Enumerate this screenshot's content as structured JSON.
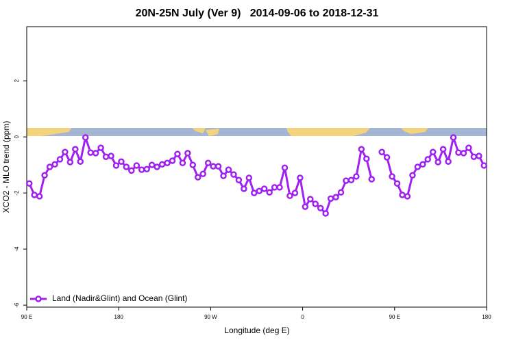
{
  "chart_data": {
    "type": "line",
    "title": "20N-25N July (Ver 9)   2014-09-06 to 2018-12-31",
    "x_label": "Longitude (deg E)",
    "y_label": "XCO2 - MLO trend (ppm)",
    "x": [
      92.5,
      97.5,
      102.5,
      107.5,
      112.5,
      117.5,
      122.5,
      127.5,
      132.5,
      137.5,
      142.5,
      147.5,
      152.5,
      157.5,
      162.5,
      167.5,
      172.5,
      177.5,
      182.5,
      187.5,
      192.5,
      197.5,
      202.5,
      207.5,
      212.5,
      217.5,
      222.5,
      227.5,
      232.5,
      237.5,
      242.5,
      247.5,
      252.5,
      257.5,
      262.5,
      267.5,
      272.5,
      277.5,
      282.5,
      287.5,
      292.5,
      297.5,
      302.5,
      307.5,
      312.5,
      317.5,
      322.5,
      327.5,
      332.5,
      337.5,
      342.5,
      347.5,
      352.5,
      357.5,
      362.5,
      367.5,
      372.5,
      377.5,
      382.5,
      387.5,
      392.5,
      397.5,
      402.5,
      407.5,
      412.5,
      417.5,
      422.5,
      427.5,
      432.5,
      437.5,
      442.5,
      447.5,
      452.5,
      457.5,
      462.5,
      467.5,
      472.5,
      477.5,
      482.5,
      487.5,
      492.5,
      497.5,
      502.5,
      507.5,
      512.5,
      517.5,
      522.5,
      527.5,
      532.5,
      537.5
    ],
    "series": [
      {
        "name": "Land (Nadir&Glint) and Ocean (Glint)",
        "color": "#a020f0",
        "values": [
          -1.66,
          -2.07,
          -2.12,
          -1.37,
          -1.07,
          -0.98,
          -0.8,
          -0.54,
          -0.9,
          -0.44,
          -0.88,
          -0.02,
          -0.56,
          -0.58,
          -0.39,
          -0.71,
          -0.68,
          -1.02,
          -0.88,
          -1.07,
          -1.2,
          -1.02,
          -1.17,
          -1.15,
          -1.0,
          -1.07,
          -0.98,
          -0.93,
          -0.85,
          -0.61,
          -0.93,
          -0.58,
          -1.0,
          -1.44,
          -1.32,
          -0.93,
          -1.05,
          -1.05,
          -1.39,
          -1.17,
          -1.34,
          -1.54,
          -1.85,
          -1.46,
          -2.0,
          -1.93,
          -1.85,
          -1.98,
          -1.8,
          -1.8,
          -1.1,
          -2.1,
          -2.0,
          -1.46,
          -2.49,
          -2.22,
          -2.39,
          -2.54,
          -2.73,
          -2.2,
          -2.15,
          -1.98,
          -1.56,
          -1.54,
          -1.41,
          -0.44,
          -0.78,
          -1.51,
          null,
          -0.54,
          -0.73,
          -1.41,
          -1.66,
          -2.07,
          -2.12,
          -1.37,
          -1.07,
          -0.98,
          -0.8,
          -0.54,
          -0.9,
          -0.44,
          -0.88,
          -0.02,
          -0.56,
          -0.58,
          -0.39,
          -0.71,
          -0.68,
          -1.02
        ]
      }
    ],
    "xlim": [
      90,
      540
    ],
    "xticks": [
      {
        "value": 90,
        "label": "90 E"
      },
      180,
      {
        "value": 270,
        "label": "90 W"
      },
      {
        "value": 360,
        "label": "0"
      },
      {
        "value": 450,
        "label": "90 E"
      },
      {
        "value": 540,
        "label": "180"
      }
    ],
    "ylim": [
      -6.07,
      3.93
    ],
    "yticks": [
      2,
      0,
      -2,
      -4,
      -6
    ],
    "legend": "bottom-left"
  }
}
